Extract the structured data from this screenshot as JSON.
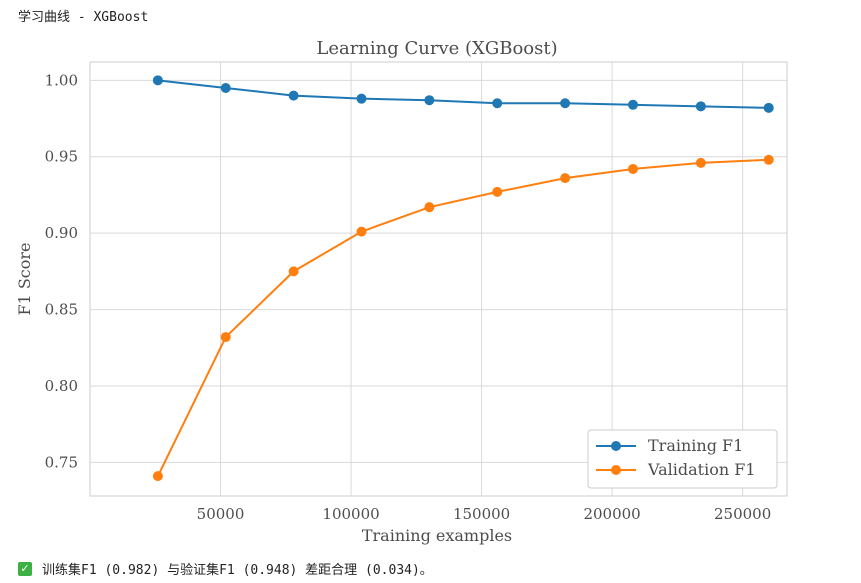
{
  "header": {
    "title": "学习曲线 - XGBoost"
  },
  "status": {
    "icon": "check-icon",
    "message": "训练集F1 (0.982) 与验证集F1 (0.948) 差距合理 (0.034)。"
  },
  "colors": {
    "training": "#1f77b4",
    "validation": "#ff7f0e",
    "grid": "#d9d9d9",
    "text": "#4d4d4d"
  },
  "chart_data": {
    "type": "line",
    "title": "Learning Curve (XGBoost)",
    "xlabel": "Training examples",
    "ylabel": "F1 Score",
    "x": [
      26000,
      52000,
      78000,
      104000,
      130000,
      156000,
      182000,
      208000,
      234000,
      260000
    ],
    "series": [
      {
        "name": "Training F1",
        "values": [
          1.0,
          0.995,
          0.99,
          0.988,
          0.987,
          0.985,
          0.985,
          0.984,
          0.983,
          0.982
        ]
      },
      {
        "name": "Validation F1",
        "values": [
          0.741,
          0.832,
          0.875,
          0.901,
          0.917,
          0.927,
          0.936,
          0.942,
          0.946,
          0.948
        ]
      }
    ],
    "xlim": [
      0,
      267000
    ],
    "ylim": [
      0.728,
      1.012
    ],
    "xticks": [
      50000,
      100000,
      150000,
      200000,
      250000
    ],
    "xtick_labels": [
      "50000",
      "100000",
      "150000",
      "200000",
      "250000"
    ],
    "yticks": [
      0.75,
      0.8,
      0.85,
      0.9,
      0.95,
      1.0
    ],
    "ytick_labels": [
      "0.75",
      "0.80",
      "0.85",
      "0.90",
      "0.95",
      "1.00"
    ],
    "grid": true,
    "legend_position": "bottom-right"
  }
}
